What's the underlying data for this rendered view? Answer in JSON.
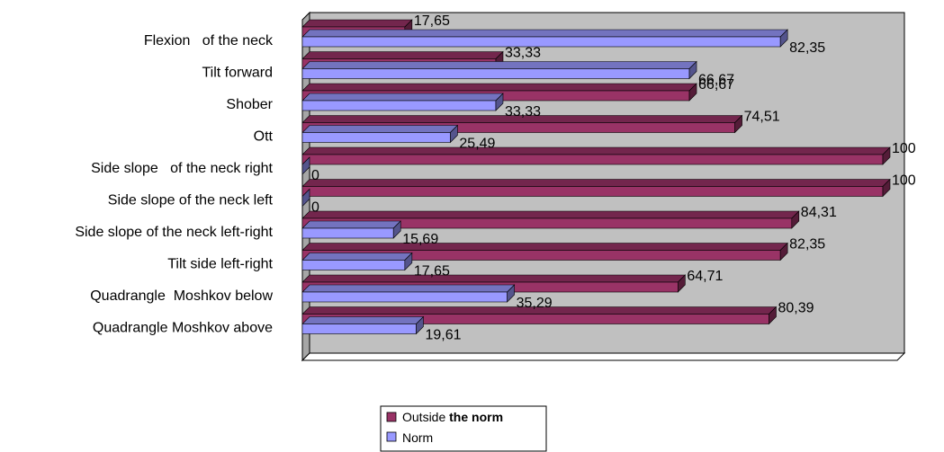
{
  "chart_data": {
    "type": "bar",
    "orientation": "horizontal",
    "three_d": true,
    "categories": [
      "Flexion   of the neck",
      "Tilt forward",
      "Shober",
      "Ott",
      "Side slope   of the neck right",
      "Side slope of the neck left",
      "Side slope of the neck left-right",
      "Tilt side left-right",
      "Quadrangle  Moshkov below",
      "Quadrangle Moshkov above"
    ],
    "series": [
      {
        "name": "Outside the norm",
        "legend_prefix": "Outside ",
        "legend_bold": "the norm",
        "color": "#993366",
        "values": [
          17.65,
          33.33,
          66.67,
          74.51,
          100,
          100,
          84.31,
          82.35,
          64.71,
          80.39
        ],
        "labels": [
          "17,65",
          "33,33",
          "66,67",
          "74,51",
          "100",
          "100",
          "84,31",
          "82,35",
          "64,71",
          "80,39"
        ]
      },
      {
        "name": "Norm",
        "legend_prefix": "Norm",
        "legend_bold": "",
        "color": "#9999ff",
        "values": [
          82.35,
          66.67,
          33.33,
          25.49,
          0,
          0,
          15.69,
          17.65,
          35.29,
          19.61
        ],
        "labels": [
          "82,35",
          "66,67",
          "33,33",
          "25,49",
          "0",
          "0",
          "15,69",
          "17,65",
          "35,29",
          "19,61"
        ]
      }
    ],
    "xlim": [
      0,
      100
    ],
    "grid": false,
    "legend_position": "bottom",
    "wall_color": "#c0c0c0"
  }
}
